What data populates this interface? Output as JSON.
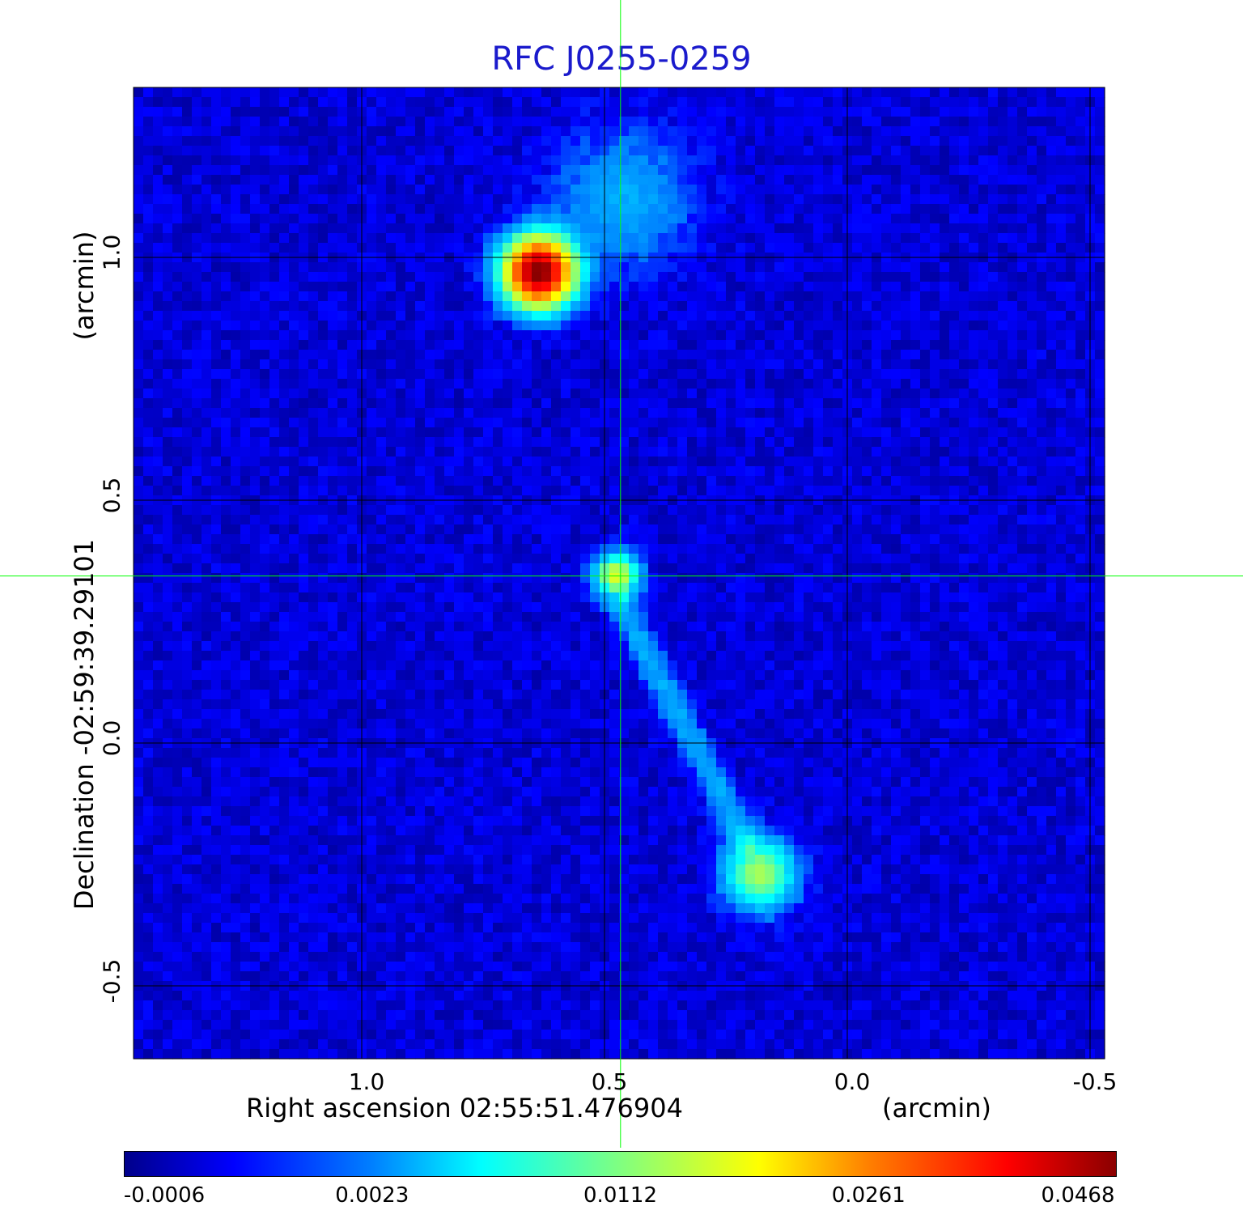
{
  "chart_data": {
    "type": "heatmap",
    "title": "RFC J0255-0259",
    "xlabel": "Right ascension  02:55:51.476904",
    "xunit": "(arcmin)",
    "ylabel": "Declination  -02:59:39.29101",
    "yunit": "(arcmin)",
    "xlim": [
      1.47,
      -0.53
    ],
    "ylim": [
      -0.65,
      1.35
    ],
    "x_ticks": [
      1.0,
      0.5,
      0.0,
      -0.5
    ],
    "x_tick_labels": [
      "1.0",
      "0.5",
      "0.0",
      "-0.5"
    ],
    "y_ticks": [
      1.0,
      0.5,
      0.0,
      -0.5
    ],
    "y_tick_labels": [
      "1.0",
      "0.5",
      "0.0",
      "-0.5"
    ],
    "grid": true,
    "crosshair": {
      "x": 0.467,
      "y": 0.344,
      "color": "#00ff00"
    },
    "sources": [
      {
        "x": 0.635,
        "y": 0.97,
        "peak": 0.0468,
        "sigma": 0.045
      },
      {
        "x": 0.475,
        "y": 0.345,
        "peak": 0.016,
        "sigma": 0.028
      },
      {
        "x": 0.18,
        "y": -0.27,
        "peak": 0.013,
        "sigma": 0.045
      },
      {
        "x": 0.46,
        "y": 1.12,
        "peak": 0.0035,
        "sigma": 0.09
      }
    ],
    "jet": {
      "from": [
        0.475,
        0.3
      ],
      "to": [
        0.2,
        -0.22
      ],
      "peak": 0.0035
    },
    "colorbar": {
      "ticks": [
        "-0.0006",
        "0.0023",
        "0.0112",
        "0.0261",
        "0.0468"
      ],
      "colormap": "jet"
    }
  }
}
